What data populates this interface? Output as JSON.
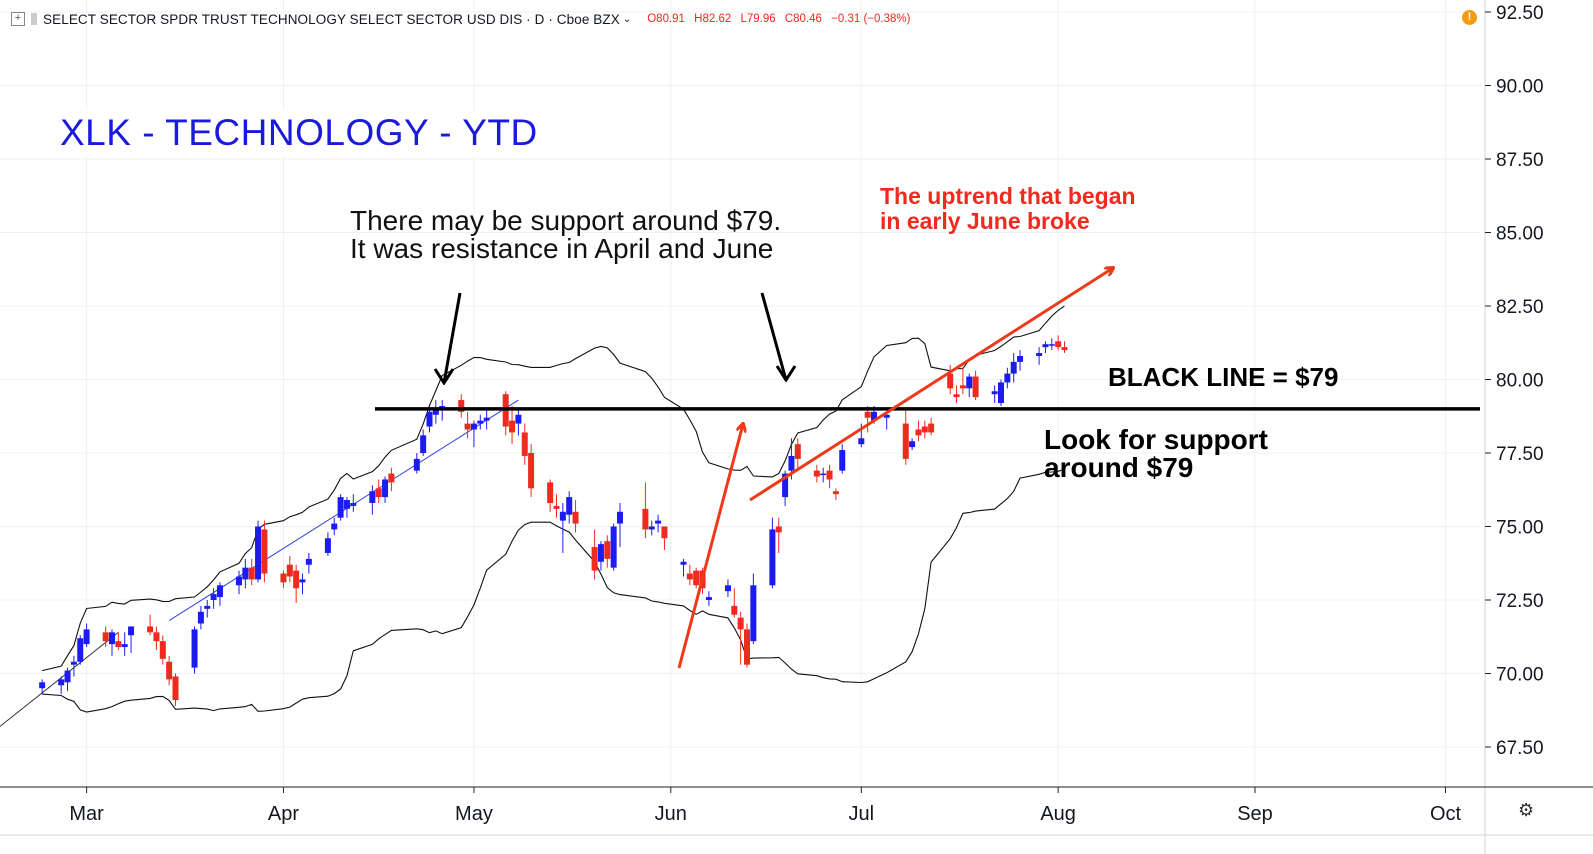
{
  "header": {
    "symbol": "SELECT SECTOR SPDR TRUST TECHNOLOGY SELECT SECTOR USD DIS · D · Cboe BZX",
    "open": "O80.91",
    "high": "H82.62",
    "low": "L79.96",
    "close": "C80.46",
    "change": "−0.31 (−0.38%)"
  },
  "annotations": {
    "title": "XLK - TECHNOLOGY - YTD",
    "support_note": "There may be support around $79.\nIt was resistance in April and June",
    "uptrend_note": "The uptrend that began\nin early June broke",
    "black_line_note": "BLACK LINE = $79",
    "look_note": "Look for support\naround $79"
  },
  "colors": {
    "up": "#1c1cf0",
    "down": "#ef2a1e",
    "band": "#111111",
    "arrow_red": "#ef3a1a",
    "title_blue": "#1a1adb"
  },
  "chart_data": {
    "type": "candlestick",
    "ylim": [
      66.5,
      92.6
    ],
    "y_ticks": [
      "92.50",
      "90.00",
      "87.50",
      "85.00",
      "82.50",
      "80.00",
      "77.50",
      "75.00",
      "72.50",
      "70.00",
      "67.50"
    ],
    "x_ticks": [
      "Mar",
      "Apr",
      "May",
      "Jun",
      "Jul",
      "Aug",
      "Sep",
      "Oct"
    ],
    "support_level": 79,
    "candles": [
      {
        "d": "Feb 22",
        "o": 69.5,
        "h": 69.8,
        "l": 69.3,
        "c": 69.7
      },
      {
        "d": "Feb 25",
        "o": 69.6,
        "h": 69.9,
        "l": 69.3,
        "c": 69.8
      },
      {
        "d": "Feb 26",
        "o": 69.7,
        "h": 70.2,
        "l": 69.4,
        "c": 70.1
      },
      {
        "d": "Feb 27",
        "o": 70.3,
        "h": 70.6,
        "l": 69.9,
        "c": 70.4
      },
      {
        "d": "Feb 28",
        "o": 70.4,
        "h": 71.3,
        "l": 70.3,
        "c": 71.2
      },
      {
        "d": "Mar 1",
        "o": 71.0,
        "h": 71.7,
        "l": 70.9,
        "c": 71.5
      },
      {
        "d": "Mar 4",
        "o": 71.4,
        "h": 71.6,
        "l": 70.9,
        "c": 71.1
      },
      {
        "d": "Mar 5",
        "o": 71.0,
        "h": 71.5,
        "l": 70.6,
        "c": 71.4
      },
      {
        "d": "Mar 6",
        "o": 71.1,
        "h": 71.4,
        "l": 70.8,
        "c": 70.9
      },
      {
        "d": "Mar 7",
        "o": 70.9,
        "h": 71.4,
        "l": 70.6,
        "c": 71.0
      },
      {
        "d": "Mar 8",
        "o": 71.3,
        "h": 71.6,
        "l": 70.7,
        "c": 71.6
      },
      {
        "d": "Mar 11",
        "o": 71.6,
        "h": 72.0,
        "l": 71.3,
        "c": 71.4
      },
      {
        "d": "Mar 12",
        "o": 71.4,
        "h": 71.6,
        "l": 70.8,
        "c": 71.1
      },
      {
        "d": "Mar 13",
        "o": 71.1,
        "h": 71.3,
        "l": 70.3,
        "c": 70.5
      },
      {
        "d": "Mar 14",
        "o": 70.4,
        "h": 70.6,
        "l": 69.6,
        "c": 69.8
      },
      {
        "d": "Mar 15",
        "o": 69.9,
        "h": 70.0,
        "l": 68.9,
        "c": 69.1
      },
      {
        "d": "Mar 18",
        "o": 70.2,
        "h": 71.6,
        "l": 70.0,
        "c": 71.5
      },
      {
        "d": "Mar 19",
        "o": 71.7,
        "h": 72.3,
        "l": 71.5,
        "c": 72.1
      },
      {
        "d": "Mar 20",
        "o": 72.2,
        "h": 72.5,
        "l": 71.9,
        "c": 72.3
      },
      {
        "d": "Mar 21",
        "o": 72.5,
        "h": 72.9,
        "l": 72.2,
        "c": 72.7
      },
      {
        "d": "Mar 22",
        "o": 72.6,
        "h": 73.1,
        "l": 72.3,
        "c": 73.0
      },
      {
        "d": "Mar 25",
        "o": 73.0,
        "h": 73.5,
        "l": 72.7,
        "c": 73.3
      },
      {
        "d": "Mar 26",
        "o": 73.2,
        "h": 73.9,
        "l": 72.9,
        "c": 73.6
      },
      {
        "d": "Mar 27",
        "o": 73.6,
        "h": 73.9,
        "l": 73.0,
        "c": 73.2
      },
      {
        "d": "Mar 28",
        "o": 73.2,
        "h": 75.2,
        "l": 73.1,
        "c": 75.0
      },
      {
        "d": "Mar 29",
        "o": 74.9,
        "h": 75.2,
        "l": 73.1,
        "c": 73.4
      },
      {
        "d": "Apr 1",
        "o": 73.4,
        "h": 73.5,
        "l": 72.9,
        "c": 73.1
      },
      {
        "d": "Apr 2",
        "o": 73.7,
        "h": 74.0,
        "l": 73.1,
        "c": 73.3
      },
      {
        "d": "Apr 3",
        "o": 73.5,
        "h": 73.7,
        "l": 72.4,
        "c": 72.9
      },
      {
        "d": "Apr 4",
        "o": 73.1,
        "h": 73.4,
        "l": 72.7,
        "c": 73.2
      },
      {
        "d": "Apr 5",
        "o": 73.7,
        "h": 74.1,
        "l": 73.4,
        "c": 73.9
      },
      {
        "d": "Apr 8",
        "o": 74.1,
        "h": 74.8,
        "l": 74.0,
        "c": 74.6
      },
      {
        "d": "Apr 9",
        "o": 74.9,
        "h": 75.3,
        "l": 74.7,
        "c": 75.1
      },
      {
        "d": "Apr 10",
        "o": 75.3,
        "h": 76.1,
        "l": 75.2,
        "c": 76.0
      },
      {
        "d": "Apr 11",
        "o": 75.6,
        "h": 76.0,
        "l": 75.3,
        "c": 75.9
      },
      {
        "d": "Apr 12",
        "o": 75.7,
        "h": 76.1,
        "l": 75.5,
        "c": 75.8
      },
      {
        "d": "Apr 15",
        "o": 75.8,
        "h": 76.4,
        "l": 75.4,
        "c": 76.2
      },
      {
        "d": "Apr 16",
        "o": 76.3,
        "h": 76.6,
        "l": 75.8,
        "c": 76.0
      },
      {
        "d": "Apr 17",
        "o": 76.0,
        "h": 76.7,
        "l": 75.8,
        "c": 76.6
      },
      {
        "d": "Apr 18",
        "o": 76.8,
        "h": 77.0,
        "l": 76.2,
        "c": 76.5
      },
      {
        "d": "Apr 22",
        "o": 76.9,
        "h": 77.5,
        "l": 76.8,
        "c": 77.3
      },
      {
        "d": "Apr 23",
        "o": 77.5,
        "h": 78.3,
        "l": 77.4,
        "c": 78.1
      },
      {
        "d": "Apr 24",
        "o": 78.4,
        "h": 79.1,
        "l": 78.2,
        "c": 78.9
      },
      {
        "d": "Apr 25",
        "o": 78.8,
        "h": 79.3,
        "l": 78.5,
        "c": 79.0
      },
      {
        "d": "Apr 26",
        "o": 79.0,
        "h": 79.3,
        "l": 78.6,
        "c": 79.1
      },
      {
        "d": "Apr 29",
        "o": 79.3,
        "h": 79.5,
        "l": 78.7,
        "c": 78.9
      },
      {
        "d": "Apr 30",
        "o": 78.5,
        "h": 78.9,
        "l": 78.0,
        "c": 78.3
      },
      {
        "d": "May 1",
        "o": 78.3,
        "h": 78.6,
        "l": 77.7,
        "c": 78.5
      },
      {
        "d": "May 2",
        "o": 78.5,
        "h": 78.8,
        "l": 78.3,
        "c": 78.6
      },
      {
        "d": "May 3",
        "o": 78.6,
        "h": 79.0,
        "l": 78.3,
        "c": 78.7
      },
      {
        "d": "May 6",
        "o": 79.5,
        "h": 79.6,
        "l": 78.1,
        "c": 78.4
      },
      {
        "d": "May 7",
        "o": 78.6,
        "h": 79.1,
        "l": 77.8,
        "c": 78.2
      },
      {
        "d": "May 8",
        "o": 78.5,
        "h": 79.0,
        "l": 78.1,
        "c": 78.8
      },
      {
        "d": "May 9",
        "o": 78.2,
        "h": 78.5,
        "l": 77.1,
        "c": 77.4
      },
      {
        "d": "May 10",
        "o": 77.5,
        "h": 77.8,
        "l": 76.0,
        "c": 76.3
      },
      {
        "d": "May 13",
        "o": 76.5,
        "h": 76.6,
        "l": 75.5,
        "c": 75.8
      },
      {
        "d": "May 14",
        "o": 75.7,
        "h": 76.1,
        "l": 75.3,
        "c": 75.6
      },
      {
        "d": "May 15",
        "o": 75.2,
        "h": 75.8,
        "l": 74.1,
        "c": 75.5
      },
      {
        "d": "May 16",
        "o": 75.4,
        "h": 76.2,
        "l": 75.1,
        "c": 76.0
      },
      {
        "d": "May 17",
        "o": 75.5,
        "h": 75.9,
        "l": 74.8,
        "c": 75.1
      },
      {
        "d": "May 20",
        "o": 74.3,
        "h": 74.9,
        "l": 73.2,
        "c": 73.5
      },
      {
        "d": "May 21",
        "o": 73.8,
        "h": 74.5,
        "l": 73.5,
        "c": 74.4
      },
      {
        "d": "May 22",
        "o": 74.5,
        "h": 74.7,
        "l": 73.6,
        "c": 73.9
      },
      {
        "d": "May 23",
        "o": 73.6,
        "h": 75.1,
        "l": 73.5,
        "c": 75.0
      },
      {
        "d": "May 24",
        "o": 75.1,
        "h": 75.8,
        "l": 74.3,
        "c": 75.5
      },
      {
        "d": "May 28",
        "o": 75.6,
        "h": 76.5,
        "l": 74.6,
        "c": 74.9
      },
      {
        "d": "May 29",
        "o": 74.9,
        "h": 75.2,
        "l": 74.7,
        "c": 75.0
      },
      {
        "d": "May 30",
        "o": 75.1,
        "h": 75.4,
        "l": 74.8,
        "c": 75.2
      },
      {
        "d": "May 31",
        "o": 75.0,
        "h": 75.0,
        "l": 74.2,
        "c": 74.6
      },
      {
        "d": "Jun 3",
        "o": 73.7,
        "h": 73.9,
        "l": 73.3,
        "c": 73.8
      },
      {
        "d": "Jun 4",
        "o": 73.4,
        "h": 73.7,
        "l": 73.0,
        "c": 73.2
      },
      {
        "d": "Jun 5",
        "o": 73.5,
        "h": 73.6,
        "l": 72.9,
        "c": 73.0
      },
      {
        "d": "Jun 6",
        "o": 73.5,
        "h": 73.6,
        "l": 72.7,
        "c": 72.9
      },
      {
        "d": "Jun 7",
        "o": 72.5,
        "h": 72.8,
        "l": 72.3,
        "c": 72.6
      },
      {
        "d": "Jun 10",
        "o": 72.8,
        "h": 73.2,
        "l": 72.6,
        "c": 73.0
      },
      {
        "d": "Jun 11",
        "o": 72.3,
        "h": 72.9,
        "l": 71.9,
        "c": 72.0
      },
      {
        "d": "Jun 12",
        "o": 71.9,
        "h": 72.1,
        "l": 70.3,
        "c": 71.5
      },
      {
        "d": "Jun 13",
        "o": 71.5,
        "h": 71.7,
        "l": 70.2,
        "c": 70.3
      },
      {
        "d": "Jun 14",
        "o": 71.1,
        "h": 73.4,
        "l": 71.0,
        "c": 73.0
      },
      {
        "d": "Jun 17",
        "o": 73.0,
        "h": 75.3,
        "l": 72.9,
        "c": 74.9
      },
      {
        "d": "Jun 18",
        "o": 75.0,
        "h": 75.3,
        "l": 74.1,
        "c": 74.8
      },
      {
        "d": "Jun 19",
        "o": 76.0,
        "h": 76.9,
        "l": 75.7,
        "c": 76.8
      },
      {
        "d": "Jun 20",
        "o": 76.9,
        "h": 78.0,
        "l": 76.6,
        "c": 77.4
      },
      {
        "d": "Jun 21",
        "o": 77.8,
        "h": 78.0,
        "l": 76.9,
        "c": 77.3
      },
      {
        "d": "Jun 24",
        "o": 76.9,
        "h": 77.1,
        "l": 76.5,
        "c": 76.7
      },
      {
        "d": "Jun 25",
        "o": 76.8,
        "h": 77.0,
        "l": 76.5,
        "c": 76.8
      },
      {
        "d": "Jun 26",
        "o": 76.9,
        "h": 77.1,
        "l": 76.3,
        "c": 76.6
      },
      {
        "d": "Jun 27",
        "o": 76.2,
        "h": 76.3,
        "l": 75.9,
        "c": 76.1
      },
      {
        "d": "Jun 28",
        "o": 76.9,
        "h": 77.8,
        "l": 76.8,
        "c": 77.6
      },
      {
        "d": "Jul 1",
        "o": 77.8,
        "h": 78.5,
        "l": 77.7,
        "c": 78.0
      },
      {
        "d": "Jul 2",
        "o": 78.9,
        "h": 79.1,
        "l": 78.2,
        "c": 78.7
      },
      {
        "d": "Jul 3",
        "o": 78.6,
        "h": 79.1,
        "l": 78.5,
        "c": 78.9
      },
      {
        "d": "Jul 5",
        "o": 78.7,
        "h": 78.9,
        "l": 78.3,
        "c": 78.8
      },
      {
        "d": "Jul 8",
        "o": 78.5,
        "h": 79.0,
        "l": 77.1,
        "c": 77.3
      },
      {
        "d": "Jul 9",
        "o": 77.7,
        "h": 78.0,
        "l": 77.6,
        "c": 77.9
      },
      {
        "d": "Jul 10",
        "o": 78.3,
        "h": 78.6,
        "l": 77.9,
        "c": 78.1
      },
      {
        "d": "Jul 11",
        "o": 78.4,
        "h": 78.6,
        "l": 78.0,
        "c": 78.2
      },
      {
        "d": "Jul 12",
        "o": 78.5,
        "h": 78.7,
        "l": 78.1,
        "c": 78.2
      },
      {
        "d": "Jul 15",
        "o": 80.2,
        "h": 80.5,
        "l": 79.5,
        "c": 79.7
      },
      {
        "d": "Jul 16",
        "o": 79.5,
        "h": 79.8,
        "l": 79.2,
        "c": 79.4
      },
      {
        "d": "Jul 17",
        "o": 79.8,
        "h": 80.4,
        "l": 79.5,
        "c": 79.7
      },
      {
        "d": "Jul 18",
        "o": 79.7,
        "h": 80.2,
        "l": 79.4,
        "c": 80.1
      },
      {
        "d": "Jul 19",
        "o": 80.1,
        "h": 80.3,
        "l": 79.3,
        "c": 79.4
      },
      {
        "d": "Jul 22",
        "o": 79.5,
        "h": 79.8,
        "l": 79.2,
        "c": 79.6
      },
      {
        "d": "Jul 23",
        "o": 79.2,
        "h": 80.0,
        "l": 79.1,
        "c": 79.9
      },
      {
        "d": "Jul 24",
        "o": 79.9,
        "h": 80.4,
        "l": 79.7,
        "c": 80.2
      },
      {
        "d": "Jul 25",
        "o": 80.2,
        "h": 80.9,
        "l": 79.9,
        "c": 80.6
      },
      {
        "d": "Jul 26",
        "o": 80.6,
        "h": 81.0,
        "l": 80.3,
        "c": 80.8
      },
      {
        "d": "Jul 29",
        "o": 80.8,
        "h": 81.1,
        "l": 80.5,
        "c": 80.9
      },
      {
        "d": "Jul 30",
        "o": 81.1,
        "h": 81.3,
        "l": 80.9,
        "c": 81.2
      },
      {
        "d": "Jul 31",
        "o": 81.2,
        "h": 81.4,
        "l": 81.0,
        "c": 81.2
      },
      {
        "d": "Aug 1",
        "o": 81.3,
        "h": 81.5,
        "l": 81.0,
        "c": 81.1
      },
      {
        "d": "Aug 2",
        "o": 81.1,
        "h": 81.3,
        "l": 80.9,
        "c": 81.0
      }
    ]
  }
}
